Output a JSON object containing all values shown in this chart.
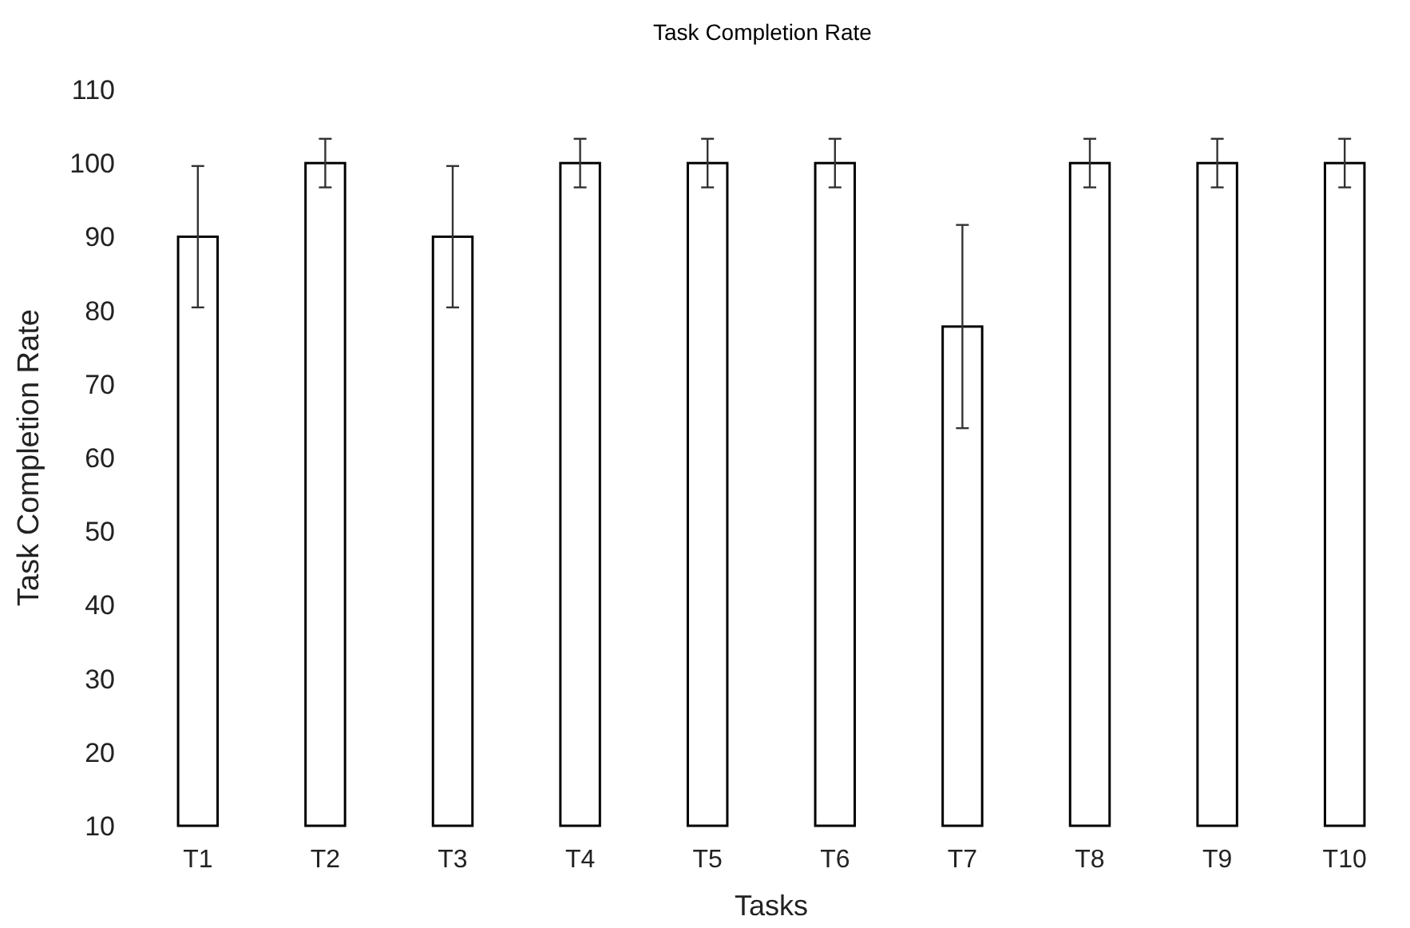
{
  "chart_data": {
    "type": "bar",
    "title": "Task Completion Rate",
    "xlabel": "Tasks",
    "ylabel": "Task Completion Rate",
    "categories": [
      "T1",
      "T2",
      "T3",
      "T4",
      "T5",
      "T6",
      "T7",
      "T8",
      "T9",
      "T10"
    ],
    "values": [
      90,
      100,
      90,
      100,
      100,
      100,
      77.8,
      100,
      100,
      100
    ],
    "errors": [
      9.6,
      3.3,
      9.6,
      3.3,
      3.3,
      3.3,
      13.8,
      3.3,
      3.3,
      3.3
    ],
    "color": "#ffffff",
    "ylim": [
      10,
      110
    ],
    "yticks": [
      10,
      20,
      30,
      40,
      50,
      60,
      70,
      80,
      90,
      100,
      110
    ],
    "grid": false
  }
}
